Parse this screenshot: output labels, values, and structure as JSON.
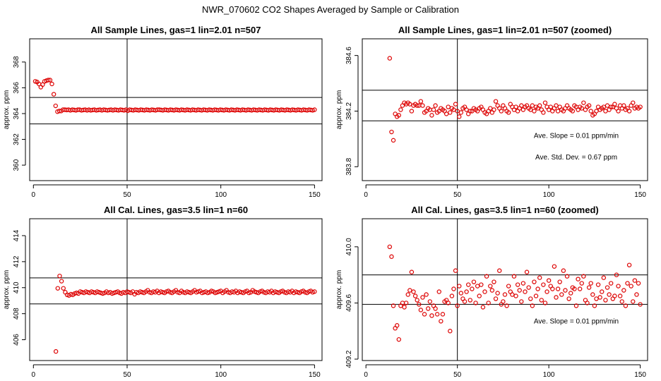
{
  "super_title": "NWR_070602  CO2 Shapes Averaged by Sample or Calibration",
  "colors": {
    "points": "#dd0000",
    "axes": "#000000",
    "background": "#ffffff"
  },
  "chart_data": [
    {
      "type": "scatter",
      "title": "All Sample Lines, gas=1 lin=2.01 n=507",
      "xlabel": "",
      "ylabel": "approx. ppm",
      "xlim": [
        -2,
        154
      ],
      "ylim": [
        358.8,
        369.8
      ],
      "xticks": [
        0,
        50,
        100,
        150
      ],
      "yticks": [
        360,
        362,
        364,
        366,
        368
      ],
      "hlines": [
        363.2,
        365.25
      ],
      "vline": 50,
      "series": [
        {
          "x_start": 1,
          "x_end": 150,
          "y": [
            366.5,
            366.45,
            366.3,
            366.05,
            366.25,
            366.5,
            366.55,
            366.6,
            366.6,
            366.3,
            365.5,
            364.6,
            364.15,
            364.2,
            364.2,
            364.3,
            364.3,
            364.28,
            364.3,
            364.25,
            364.3,
            364.28,
            364.25,
            364.3,
            364.3,
            364.25,
            364.28,
            364.3,
            364.25,
            364.3,
            364.25,
            364.28,
            364.3,
            364.25,
            364.28,
            364.3,
            364.25,
            364.3,
            364.28,
            364.25,
            364.28,
            364.3,
            364.25,
            364.3,
            364.28,
            364.25,
            364.3,
            364.28,
            364.25,
            364.3,
            364.22,
            364.3,
            364.28,
            364.25,
            364.3,
            364.28,
            364.25,
            364.3,
            364.28,
            364.25,
            364.3,
            364.28,
            364.25,
            364.3,
            364.28,
            364.25,
            364.3,
            364.3,
            364.28,
            364.25,
            364.3,
            364.28,
            364.25,
            364.3,
            364.28,
            364.25,
            364.3,
            364.28,
            364.25,
            364.3,
            364.28,
            364.25,
            364.3,
            364.28,
            364.25,
            364.3,
            364.28,
            364.25,
            364.3,
            364.28,
            364.25,
            364.3,
            364.28,
            364.25,
            364.3,
            364.28,
            364.25,
            364.3,
            364.28,
            364.25,
            364.3,
            364.28,
            364.25,
            364.3,
            364.28,
            364.25,
            364.3,
            364.28,
            364.25,
            364.3,
            364.28,
            364.25,
            364.3,
            364.28,
            364.25,
            364.3,
            364.28,
            364.25,
            364.3,
            364.28,
            364.25,
            364.3,
            364.28,
            364.25,
            364.3,
            364.28,
            364.25,
            364.3,
            364.28,
            364.25,
            364.3,
            364.28,
            364.25,
            364.3,
            364.28,
            364.25,
            364.3,
            364.28,
            364.25,
            364.3,
            364.28,
            364.25,
            364.3,
            364.28,
            364.25,
            364.3,
            364.28,
            364.25,
            364.3,
            364.28,
            364.25,
            364.3
          ]
        }
      ],
      "annotations": []
    },
    {
      "type": "scatter",
      "title": "All Sample Lines, gas=1 lin=2.01 n=507 (zoomed)",
      "xlabel": "",
      "ylabel": "approx. ppm",
      "xlim": [
        -2,
        154
      ],
      "ylim": [
        383.7,
        384.72
      ],
      "xticks": [
        0,
        50,
        100,
        150
      ],
      "yticks": [
        383.8,
        384.2,
        384.6
      ],
      "hlines": [
        384.13,
        384.35
      ],
      "vline": 50,
      "series": [
        {
          "x_start": 13,
          "x_end": 150,
          "y": [
            384.58,
            384.05,
            383.99,
            384.18,
            384.16,
            384.17,
            384.21,
            384.24,
            384.26,
            384.25,
            384.26,
            384.25,
            384.2,
            384.24,
            384.25,
            384.24,
            384.24,
            384.27,
            384.24,
            384.19,
            384.2,
            384.22,
            384.21,
            384.17,
            384.21,
            384.24,
            384.19,
            384.2,
            384.22,
            384.21,
            384.2,
            384.18,
            384.23,
            384.19,
            384.22,
            384.21,
            384.25,
            384.2,
            384.16,
            384.19,
            384.22,
            384.23,
            384.21,
            384.18,
            384.2,
            384.2,
            384.22,
            384.21,
            384.2,
            384.22,
            384.23,
            384.21,
            384.19,
            384.18,
            384.2,
            384.22,
            384.19,
            384.21,
            384.27,
            384.24,
            384.22,
            384.2,
            384.24,
            384.22,
            384.2,
            384.19,
            384.25,
            384.23,
            384.21,
            384.23,
            384.2,
            384.22,
            384.24,
            384.21,
            384.23,
            384.24,
            384.22,
            384.21,
            384.24,
            384.2,
            384.23,
            384.22,
            384.24,
            384.21,
            384.19,
            384.26,
            384.23,
            384.21,
            384.23,
            384.2,
            384.22,
            384.24,
            384.2,
            384.23,
            384.21,
            384.2,
            384.22,
            384.24,
            384.22,
            384.21,
            384.2,
            384.24,
            384.23,
            384.21,
            384.23,
            384.22,
            384.26,
            384.21,
            384.23,
            384.24,
            384.2,
            384.17,
            384.18,
            384.2,
            384.23,
            384.21,
            384.22,
            384.23,
            384.2,
            384.24,
            384.21,
            384.23,
            384.23,
            384.25,
            384.22,
            384.2,
            384.24,
            384.22,
            384.24,
            384.21,
            384.22,
            384.2,
            384.24,
            384.26,
            384.22,
            384.23,
            384.22,
            384.23
          ]
        }
      ],
      "annotations": [
        "Ave. Slope =  0.01  ppm/min",
        "Ave. Std. Dev. =  0.67  ppm"
      ]
    },
    {
      "type": "scatter",
      "title": "All Cal. Lines, gas=3.5 lin=1 n=60",
      "xlabel": "",
      "ylabel": "approx. ppm",
      "xlim": [
        -2,
        154
      ],
      "ylim": [
        404.4,
        415.3
      ],
      "xticks": [
        0,
        50,
        100,
        150
      ],
      "yticks": [
        406,
        408,
        410,
        412,
        414
      ],
      "hlines": [
        408.75,
        410.75
      ],
      "vline": 50,
      "series": [
        {
          "x_start": 12,
          "x_end": 150,
          "y": [
            405.1,
            409.95,
            410.9,
            410.5,
            409.95,
            409.65,
            409.45,
            409.4,
            409.5,
            409.45,
            409.55,
            409.6,
            409.55,
            409.7,
            409.65,
            409.6,
            409.7,
            409.65,
            409.6,
            409.7,
            409.65,
            409.6,
            409.7,
            409.65,
            409.6,
            409.55,
            409.6,
            409.7,
            409.6,
            409.65,
            409.55,
            409.6,
            409.65,
            409.7,
            409.6,
            409.55,
            409.65,
            409.6,
            409.7,
            409.65,
            409.6,
            409.7,
            409.5,
            409.65,
            409.6,
            409.7,
            409.65,
            409.6,
            409.7,
            409.8,
            409.65,
            409.6,
            409.7,
            409.65,
            409.75,
            409.6,
            409.7,
            409.65,
            409.6,
            409.7,
            409.75,
            409.65,
            409.6,
            409.7,
            409.8,
            409.65,
            409.6,
            409.75,
            409.65,
            409.6,
            409.7,
            409.65,
            409.6,
            409.7,
            409.8,
            409.65,
            409.7,
            409.75,
            409.6,
            409.65,
            409.7,
            409.6,
            409.65,
            409.75,
            409.7,
            409.6,
            409.65,
            409.7,
            409.75,
            409.6,
            409.7,
            409.8,
            409.65,
            409.6,
            409.7,
            409.65,
            409.75,
            409.6,
            409.7,
            409.65,
            409.6,
            409.7,
            409.75,
            409.6,
            409.65,
            409.8,
            409.7,
            409.65,
            409.6,
            409.7,
            409.75,
            409.65,
            409.6,
            409.7,
            409.65,
            409.75,
            409.6,
            409.7,
            409.65,
            409.6,
            409.7,
            409.75,
            409.65,
            409.6,
            409.7,
            409.65,
            409.75,
            409.6,
            409.7,
            409.65,
            409.6,
            409.7,
            409.75,
            409.65,
            409.6,
            409.7,
            409.75,
            409.65,
            409.7
          ]
        }
      ],
      "annotations": []
    },
    {
      "type": "scatter",
      "title": "All Cal. Lines, gas=3.5 lin=1 n=60 (zoomed)",
      "xlabel": "",
      "ylabel": "approx. ppm",
      "xlim": [
        -2,
        154
      ],
      "ylim": [
        409.19,
        410.2
      ],
      "xticks": [
        0,
        50,
        100,
        150
      ],
      "yticks": [
        409.2,
        409.6,
        410.0
      ],
      "hlines": [
        409.59,
        409.8
      ],
      "vline": 50,
      "series": [
        {
          "x_start": 13,
          "x_end": 150,
          "y": [
            410.0,
            409.93,
            409.58,
            409.42,
            409.44,
            409.34,
            409.58,
            409.6,
            409.57,
            409.6,
            409.66,
            409.69,
            409.82,
            409.68,
            409.65,
            409.62,
            409.59,
            409.55,
            409.64,
            409.52,
            409.66,
            409.56,
            409.61,
            409.51,
            409.58,
            409.56,
            409.52,
            409.68,
            409.47,
            409.52,
            409.61,
            409.62,
            409.6,
            409.4,
            409.65,
            409.7,
            409.83,
            409.58,
            409.72,
            409.67,
            409.63,
            409.61,
            409.68,
            409.73,
            409.62,
            409.7,
            409.75,
            409.6,
            409.72,
            409.65,
            409.73,
            409.57,
            409.68,
            409.79,
            409.6,
            409.72,
            409.69,
            409.75,
            409.63,
            409.67,
            409.83,
            409.59,
            409.61,
            409.66,
            409.58,
            409.72,
            409.68,
            409.66,
            409.79,
            409.65,
            409.73,
            409.69,
            409.61,
            409.74,
            409.68,
            409.82,
            409.71,
            409.63,
            409.58,
            409.75,
            409.65,
            409.7,
            409.78,
            409.62,
            409.73,
            409.6,
            409.68,
            409.76,
            409.72,
            409.7,
            409.86,
            409.64,
            409.7,
            409.75,
            409.66,
            409.83,
            409.69,
            409.79,
            409.63,
            409.67,
            409.71,
            409.7,
            409.58,
            409.77,
            409.7,
            409.74,
            409.79,
            409.62,
            409.6,
            409.71,
            409.74,
            409.66,
            409.58,
            409.63,
            409.73,
            409.64,
            409.68,
            409.78,
            409.62,
            409.71,
            409.66,
            409.74,
            409.63,
            409.65,
            409.8,
            409.72,
            409.65,
            409.61,
            409.69,
            409.58,
            409.74,
            409.87,
            409.72,
            409.61,
            409.76,
            409.66,
            409.74,
            409.59
          ]
        }
      ],
      "annotations": [
        "Ave. Slope =  0.01  ppm/min"
      ]
    }
  ]
}
